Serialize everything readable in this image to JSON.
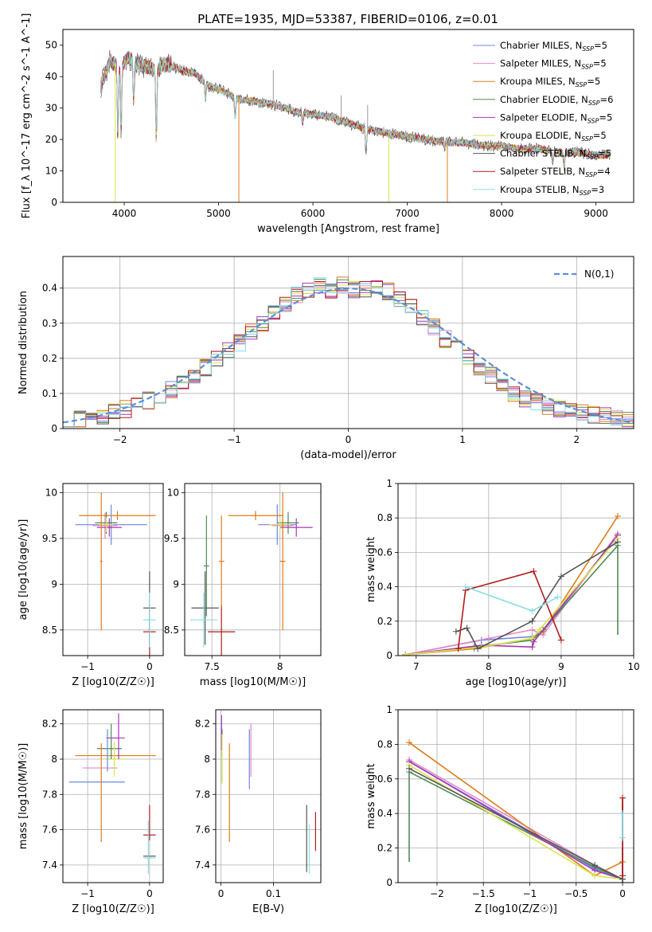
{
  "figure_title": "PLATE=1935, MJD=53387, FIBERID=0106, z=0.01",
  "colors": [
    "#6a88e0",
    "#e889c8",
    "#e07b1a",
    "#4f8a55",
    "#a637b8",
    "#d8e64a",
    "#555555",
    "#b01c1c",
    "#88dde6"
  ],
  "legend_labels": [
    "Chabrier MILES, N_SSP=5",
    "Salpeter MILES, N_SSP=5",
    "Kroupa MILES, N_SSP=5",
    "Chabrier ELODIE, N_SSP=6",
    "Salpeter ELODIE, N_SSP=5",
    "Kroupa ELODIE, N_SSP=5",
    "Chabrier STELIB, N_SSP=5",
    "Salpeter STELIB, N_SSP=4",
    "Kroupa STELIB, N_SSP=3"
  ],
  "chart_data": [
    {
      "id": "spectrum",
      "type": "line",
      "xlabel": "wavelength [Angstrom, rest frame]",
      "ylabel": "Flux [f_λ 10^-17 erg cm^-2 s^-1 A^-1]",
      "xlim": [
        3350,
        9400
      ],
      "ylim": [
        0,
        55
      ],
      "xticks": [
        4000,
        5000,
        6000,
        7000,
        8000,
        9000
      ],
      "yticks": [
        0,
        10,
        20,
        30,
        40,
        50
      ],
      "legend": "upper-right",
      "continuum": {
        "x": [
          3750,
          3850,
          3950,
          4050,
          4150,
          4250,
          4350,
          4450,
          4600,
          4750,
          4900,
          5000,
          5200,
          5400,
          5600,
          5800,
          6000,
          6200,
          6400,
          6600,
          6800,
          7000,
          7200,
          7400,
          7600,
          7800,
          8000,
          8200,
          8400,
          8600,
          8800,
          9000,
          9150
        ],
        "y": [
          37,
          45,
          43,
          46,
          44,
          43,
          42,
          44,
          42,
          41,
          37,
          36,
          33,
          32,
          31,
          29,
          28,
          27,
          25,
          23,
          22,
          21,
          20,
          19,
          19,
          18,
          18,
          17,
          17,
          16,
          16,
          15,
          15
        ]
      },
      "features": [
        {
          "x": 3933,
          "y": 20
        },
        {
          "x": 3968,
          "y": 22
        },
        {
          "x": 4101,
          "y": 32
        },
        {
          "x": 4340,
          "y": 20
        },
        {
          "x": 4861,
          "y": 33
        },
        {
          "x": 5175,
          "y": 27
        },
        {
          "x": 5890,
          "y": 25
        },
        {
          "x": 6563,
          "y": 16
        },
        {
          "x": 7400,
          "y": 17
        },
        {
          "x": 8542,
          "y": 12
        },
        {
          "x": 8662,
          "y": 11
        }
      ],
      "spikes_down": [
        {
          "series": 5,
          "x": 3905,
          "y": 0
        },
        {
          "series": 2,
          "x": 5215,
          "y": 0
        },
        {
          "series": 5,
          "x": 6805,
          "y": 0
        },
        {
          "series": 2,
          "x": 7425,
          "y": 0
        }
      ],
      "spikes_up": [
        {
          "x": 5580,
          "y": 42
        },
        {
          "x": 6300,
          "y": 34
        },
        {
          "x": 6580,
          "y": 31
        },
        {
          "x": 6750,
          "y": 24
        }
      ]
    },
    {
      "id": "residual_hist",
      "type": "line",
      "xlabel": "(data-model)/error",
      "ylabel": "Normed distribution",
      "xlim": [
        -2.5,
        2.5
      ],
      "ylim": [
        0,
        0.49
      ],
      "xticks": [
        -2,
        -1,
        0,
        1,
        2
      ],
      "yticks": [
        0.0,
        0.1,
        0.2,
        0.3,
        0.4
      ],
      "grid": true,
      "legend_label": "N(0,1)",
      "legend": "upper-right",
      "bin_edges": [
        -2.5,
        -2.4,
        -2.3,
        -2.2,
        -2.1,
        -2.0,
        -1.9,
        -1.8,
        -1.7,
        -1.6,
        -1.5,
        -1.4,
        -1.3,
        -1.2,
        -1.1,
        -1.0,
        -0.9,
        -0.8,
        -0.7,
        -0.6,
        -0.5,
        -0.4,
        -0.3,
        -0.2,
        -0.1,
        0.0,
        0.1,
        0.2,
        0.3,
        0.4,
        0.5,
        0.6,
        0.7,
        0.8,
        0.9,
        1.0,
        1.1,
        1.2,
        1.3,
        1.4,
        1.5,
        1.6,
        1.7,
        1.8,
        1.9,
        2.0,
        2.1,
        2.2,
        2.3,
        2.4,
        2.5
      ],
      "hist_base": [
        0.02,
        0.025,
        0.03,
        0.035,
        0.045,
        0.055,
        0.065,
        0.08,
        0.095,
        0.11,
        0.13,
        0.15,
        0.175,
        0.2,
        0.22,
        0.245,
        0.275,
        0.3,
        0.33,
        0.355,
        0.38,
        0.395,
        0.405,
        0.395,
        0.41,
        0.395,
        0.395,
        0.4,
        0.39,
        0.37,
        0.345,
        0.32,
        0.29,
        0.255,
        0.23,
        0.2,
        0.17,
        0.15,
        0.12,
        0.1,
        0.085,
        0.075,
        0.065,
        0.055,
        0.05,
        0.045,
        0.04,
        0.035,
        0.03,
        0.025
      ]
    },
    {
      "id": "age_vs_Z",
      "type": "scatter",
      "xlabel": "Z [log10(Z/Z☉)]",
      "ylabel": "age  [log10(age/yr)]",
      "xlim": [
        -1.4,
        0.22
      ],
      "ylim": [
        8.22,
        10.1
      ],
      "xticks": [
        -1,
        0
      ],
      "yticks": [
        8.5,
        9.0,
        9.5,
        10.0
      ],
      "grid": true,
      "points": [
        {
          "s": 0,
          "x": -0.62,
          "xe": 0.58,
          "y": 9.65,
          "ye": 0.22
        },
        {
          "s": 1,
          "x": -0.72,
          "xe": 0.2,
          "y": 9.64,
          "ye": 0.14
        },
        {
          "s": 2,
          "x": -0.52,
          "xe": 0.62,
          "y": 9.75,
          "ye": 0.05
        },
        {
          "s": 3,
          "x": -0.7,
          "xe": 0.18,
          "y": 9.67,
          "ye": 0.12
        },
        {
          "s": 4,
          "x": -0.65,
          "xe": 0.2,
          "y": 9.62,
          "ye": 0.1
        },
        {
          "s": 5,
          "x": -0.7,
          "xe": 0.12,
          "y": 9.65,
          "ye": 0.08
        },
        {
          "s": 6,
          "x": 0,
          "xe": 0.1,
          "y": 8.74,
          "ye": 0.4
        },
        {
          "s": 7,
          "x": 0,
          "xe": 0.1,
          "y": 8.48,
          "ye": 0.3
        },
        {
          "s": 8,
          "x": 0,
          "xe": 0.1,
          "y": 8.61,
          "ye": 0.3
        },
        {
          "s": 2,
          "x": -0.78,
          "xe": 0.02,
          "y": 9.25,
          "ye": 0.75
        }
      ]
    },
    {
      "id": "age_vs_mass",
      "type": "scatter",
      "xlabel": "mass [log10(M/M☉)]",
      "ylabel": "",
      "xlim": [
        7.3,
        8.3
      ],
      "ylim": [
        8.22,
        10.1
      ],
      "xticks": [
        7.5,
        8.0
      ],
      "yticks": [
        8.5,
        9.0,
        9.5,
        10.0
      ],
      "grid": true,
      "points": [
        {
          "s": 0,
          "x": 7.98,
          "xe": 0.14,
          "y": 9.65,
          "ye": 0.22
        },
        {
          "s": 1,
          "x": 8.02,
          "xe": 0.08,
          "y": 9.64,
          "ye": 0.14
        },
        {
          "s": 2,
          "x": 7.82,
          "xe": 0.2,
          "y": 9.75,
          "ye": 0.05
        },
        {
          "s": 3,
          "x": 8.06,
          "xe": 0.08,
          "y": 9.67,
          "ye": 0.12
        },
        {
          "s": 4,
          "x": 8.12,
          "xe": 0.12,
          "y": 9.62,
          "ye": 0.1
        },
        {
          "s": 5,
          "x": 8.0,
          "xe": 0.08,
          "y": 9.65,
          "ye": 0.08
        },
        {
          "s": 6,
          "x": 7.45,
          "xe": 0.1,
          "y": 8.74,
          "ye": 0.4
        },
        {
          "s": 7,
          "x": 7.57,
          "xe": 0.1,
          "y": 8.48,
          "ye": 0.3
        },
        {
          "s": 8,
          "x": 7.44,
          "xe": 0.1,
          "y": 8.61,
          "ye": 0.3
        },
        {
          "s": 2,
          "x": 8.02,
          "xe": 0.02,
          "y": 9.25,
          "ye": 0.75
        },
        {
          "s": 2,
          "x": 7.57,
          "xe": 0.02,
          "y": 9.25,
          "ye": 0.5
        },
        {
          "s": 3,
          "x": 7.46,
          "xe": 0.02,
          "y": 9.2,
          "ye": 0.55
        }
      ]
    },
    {
      "id": "massweight_vs_age",
      "type": "line",
      "xlabel": "age  [log10(age/yr)]",
      "ylabel": "mass weight",
      "xlim": [
        6.75,
        10.0
      ],
      "ylim": [
        0,
        1.0
      ],
      "xticks": [
        7,
        8,
        9,
        10
      ],
      "yticks": [
        0.0,
        0.2,
        0.4,
        0.6,
        0.8,
        1.0
      ],
      "grid": true,
      "series": [
        {
          "s": 0,
          "x": [
            6.85,
            7.9,
            8.6,
            8.75,
            9.78
          ],
          "y": [
            0.005,
            0.09,
            0.11,
            0.14,
            0.7
          ],
          "lo": [],
          "hi": []
        },
        {
          "s": 1,
          "x": [
            6.85,
            8.0,
            8.6,
            8.75,
            9.78
          ],
          "y": [
            0.005,
            0.1,
            0.15,
            0.12,
            0.71
          ],
          "lo": [],
          "hi": []
        },
        {
          "s": 2,
          "x": [
            6.85,
            7.8,
            8.6,
            8.75,
            9.78
          ],
          "y": [
            0.005,
            0.04,
            0.1,
            0.14,
            0.81
          ],
          "lo": [],
          "hi": []
        },
        {
          "s": 3,
          "x": [
            6.85,
            7.8,
            8.6,
            8.75,
            9.78
          ],
          "y": [
            0.005,
            0.05,
            0.09,
            0.15,
            0.64
          ],
          "lo": [],
          "hi": []
        },
        {
          "s": 4,
          "x": [
            6.85,
            7.9,
            8.6,
            8.62,
            9.78
          ],
          "y": [
            0.005,
            0.06,
            0.05,
            0.08,
            0.7
          ],
          "lo": [],
          "hi": []
        },
        {
          "s": 5,
          "x": [
            6.85,
            7.9,
            8.6,
            8.7,
            9.78
          ],
          "y": [
            0.005,
            0.05,
            0.1,
            0.15,
            0.68
          ],
          "lo": [],
          "hi": []
        },
        {
          "s": 6,
          "x": [
            7.55,
            7.7,
            7.85,
            8.6,
            9.0,
            9.78
          ],
          "y": [
            0.14,
            0.16,
            0.04,
            0.2,
            0.46,
            0.66
          ],
          "lo": [],
          "hi": []
        },
        {
          "s": 7,
          "x": [
            7.58,
            7.68,
            8.62,
            9.0
          ],
          "y": [
            0.04,
            0.38,
            0.49,
            0.09
          ],
          "lo": [],
          "hi": []
        },
        {
          "s": 8,
          "x": [
            7.68,
            8.6,
            8.95
          ],
          "y": [
            0.4,
            0.26,
            0.34
          ],
          "lo": [],
          "hi": []
        }
      ],
      "vbars": [
        {
          "s": 3,
          "x": 9.78,
          "y0": 0.12,
          "y1": 0.64
        }
      ]
    },
    {
      "id": "mass_vs_Z",
      "type": "scatter",
      "xlabel": "Z [log10(Z/Z☉)]",
      "ylabel": "mass [log10(M/M☉)]",
      "xlim": [
        -1.4,
        0.22
      ],
      "ylim": [
        7.3,
        8.28
      ],
      "xticks": [
        -1,
        0
      ],
      "yticks": [
        7.4,
        7.6,
        7.8,
        8.0,
        8.2
      ],
      "grid": true,
      "points": [
        {
          "s": 0,
          "x": -0.85,
          "xe": 0.45,
          "y": 7.87,
          "ye": 0.0
        },
        {
          "s": 1,
          "x": -0.8,
          "xe": 0.28,
          "y": 7.95,
          "ye": 0.0
        },
        {
          "s": 2,
          "x": -0.55,
          "xe": 0.65,
          "y": 8.02,
          "ye": 0.0
        },
        {
          "s": 3,
          "x": -0.65,
          "xe": 0.2,
          "y": 8.06,
          "ye": 0.0
        },
        {
          "s": 4,
          "x": -0.55,
          "xe": 0.15,
          "y": 8.12,
          "ye": 0.0
        },
        {
          "s": 5,
          "x": -0.55,
          "xe": 0.15,
          "y": 8.0,
          "ye": 0.0
        },
        {
          "s": 6,
          "x": 0,
          "xe": 0.1,
          "y": 7.45,
          "ye": 0.0
        },
        {
          "s": 7,
          "x": 0,
          "xe": 0.1,
          "y": 7.57,
          "ye": 0.0
        },
        {
          "s": 8,
          "x": 0,
          "xe": 0.1,
          "y": 7.44,
          "ye": 0.0
        },
        {
          "s": 2,
          "x": -0.78,
          "xe": 0.0,
          "y": 7.81,
          "ye": 0.28
        },
        {
          "s": 0,
          "x": -0.68,
          "xe": 0.0,
          "y": 8.05,
          "ye": 0.12
        },
        {
          "s": 4,
          "x": -0.5,
          "xe": 0.0,
          "y": 8.13,
          "ye": 0.13
        },
        {
          "s": 5,
          "x": -0.57,
          "xe": 0.0,
          "y": 8.0,
          "ye": 0.1
        },
        {
          "s": 3,
          "x": -0.62,
          "xe": 0.0,
          "y": 8.1,
          "ye": 0.1
        },
        {
          "s": 7,
          "x": 0,
          "xe": 0.0,
          "y": 7.64,
          "ye": 0.1
        },
        {
          "s": 8,
          "x": -0.02,
          "xe": 0.0,
          "y": 7.5,
          "ye": 0.15
        }
      ]
    },
    {
      "id": "mass_vs_EBV",
      "type": "scatter",
      "xlabel": "E(B-V)",
      "ylabel": "",
      "xlim": [
        -0.01,
        0.19
      ],
      "ylim": [
        7.3,
        8.28
      ],
      "xticks": [
        0.0,
        0.1
      ],
      "yticks": [
        7.4,
        7.6,
        7.8,
        8.0,
        8.2
      ],
      "grid": true,
      "points": [
        {
          "s": 0,
          "x": 0.054,
          "xe": 0,
          "y": 8.0,
          "ye": 0.17
        },
        {
          "s": 1,
          "x": 0.057,
          "xe": 0,
          "y": 8.05,
          "ye": 0.15
        },
        {
          "s": 2,
          "x": 0.016,
          "xe": 0,
          "y": 7.81,
          "ye": 0.28
        },
        {
          "s": 3,
          "x": 0.002,
          "xe": 0,
          "y": 8.02,
          "ye": 0.15
        },
        {
          "s": 4,
          "x": 0.001,
          "xe": 0,
          "y": 8.15,
          "ye": 0.1
        },
        {
          "s": 5,
          "x": 0.002,
          "xe": 0,
          "y": 8.0,
          "ye": 0.14
        },
        {
          "s": 6,
          "x": 0.163,
          "xe": 0,
          "y": 7.55,
          "ye": 0.19
        },
        {
          "s": 7,
          "x": 0.18,
          "xe": 0,
          "y": 7.59,
          "ye": 0.11
        },
        {
          "s": 8,
          "x": 0.168,
          "xe": 0,
          "y": 7.49,
          "ye": 0.14
        }
      ]
    },
    {
      "id": "massweight_vs_Z",
      "type": "line",
      "xlabel": "Z [log10(Z/Z☉)]",
      "ylabel": "mass weight",
      "xlim": [
        -2.42,
        0.12
      ],
      "ylim": [
        0,
        1.0
      ],
      "xticks": [
        -2.0,
        -1.5,
        -1.0,
        -0.5,
        0.0
      ],
      "yticks": [
        0.0,
        0.2,
        0.4,
        0.6,
        0.8,
        1.0
      ],
      "grid": true,
      "series": [
        {
          "s": 0,
          "x": [
            -2.3,
            -0.3,
            0
          ],
          "y": [
            0.7,
            0.08,
            0.02
          ]
        },
        {
          "s": 1,
          "x": [
            -2.3,
            -0.3,
            0
          ],
          "y": [
            0.71,
            0.1,
            0.02
          ]
        },
        {
          "s": 2,
          "x": [
            -2.3,
            -0.3,
            0
          ],
          "y": [
            0.81,
            0.04,
            0.12
          ]
        },
        {
          "s": 3,
          "x": [
            -2.3,
            -0.3,
            0
          ],
          "y": [
            0.64,
            0.09,
            0.02
          ]
        },
        {
          "s": 4,
          "x": [
            -2.3,
            -0.3,
            0
          ],
          "y": [
            0.7,
            0.07,
            0.02
          ]
        },
        {
          "s": 5,
          "x": [
            -2.3,
            -0.3,
            0
          ],
          "y": [
            0.68,
            0.04,
            0.02
          ]
        },
        {
          "s": 6,
          "x": [
            -2.3,
            -0.3,
            0
          ],
          "y": [
            0.66,
            0.1,
            0.02
          ]
        },
        {
          "s": 7,
          "x": [
            0,
            0
          ],
          "y": [
            0.04,
            0.49
          ]
        },
        {
          "s": 8,
          "x": [
            0,
            0
          ],
          "y": [
            0.26,
            0.4
          ]
        }
      ],
      "vbars": [
        {
          "s": 3,
          "x": -2.3,
          "y0": 0.12,
          "y1": 0.64
        },
        {
          "s": 7,
          "x": 0,
          "y0": 0.0,
          "y1": 0.49
        },
        {
          "s": 6,
          "x": 0,
          "y0": 0.0,
          "y1": 0.46
        },
        {
          "s": 8,
          "x": 0,
          "y0": 0.2,
          "y1": 0.4
        }
      ]
    }
  ]
}
